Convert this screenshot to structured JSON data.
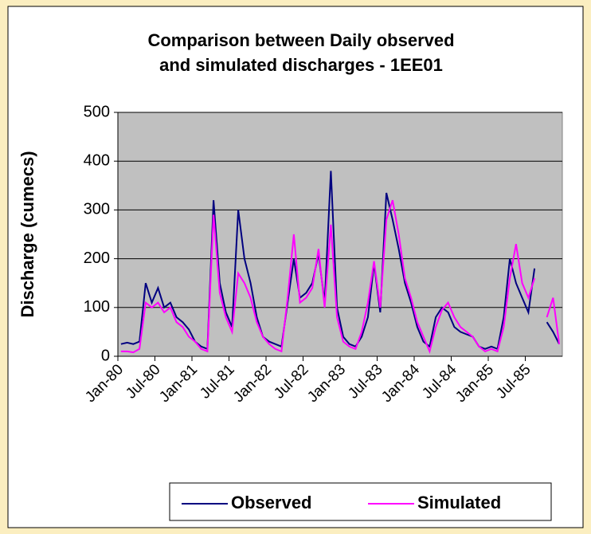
{
  "chart_data": {
    "type": "line",
    "title": [
      "Comparison between Daily observed",
      "and simulated discharges - 1EE01"
    ],
    "y_label": "Discharge (cumecs)",
    "categories": [
      "Jan-80",
      null,
      null,
      null,
      null,
      null,
      "Jul-80",
      null,
      null,
      null,
      null,
      null,
      "Jan-81",
      null,
      null,
      null,
      null,
      null,
      "Jul-81",
      null,
      null,
      null,
      null,
      null,
      "Jan-82",
      null,
      null,
      null,
      null,
      null,
      "Jul-82",
      null,
      null,
      null,
      null,
      null,
      "Jan-83",
      null,
      null,
      null,
      null,
      null,
      "Jul-83",
      null,
      null,
      null,
      null,
      null,
      "Jan-84",
      null,
      null,
      null,
      null,
      null,
      "Jul-84",
      null,
      null,
      null,
      null,
      null,
      "Jan-85",
      null,
      null,
      null,
      null,
      null,
      "Jul-85",
      null,
      null,
      null,
      null,
      null
    ],
    "series": [
      {
        "name": "Observed",
        "color": "#000080",
        "values": [
          25,
          28,
          25,
          30,
          150,
          110,
          140,
          100,
          110,
          80,
          70,
          55,
          30,
          20,
          15,
          320,
          150,
          90,
          60,
          300,
          200,
          150,
          80,
          40,
          30,
          25,
          20,
          110,
          200,
          120,
          130,
          150,
          210,
          110,
          380,
          100,
          40,
          25,
          20,
          40,
          80,
          190,
          90,
          335,
          280,
          220,
          150,
          110,
          60,
          30,
          20,
          80,
          100,
          90,
          60,
          50,
          45,
          40,
          20,
          15,
          20,
          15,
          80,
          200,
          150,
          120,
          90,
          180,
          null,
          70,
          50,
          25
        ]
      },
      {
        "name": "Simulated",
        "color": "#ff00ff",
        "values": [
          10,
          10,
          8,
          15,
          110,
          100,
          110,
          90,
          100,
          70,
          60,
          40,
          30,
          15,
          10,
          290,
          130,
          80,
          50,
          170,
          150,
          120,
          70,
          40,
          25,
          15,
          10,
          120,
          250,
          110,
          120,
          140,
          220,
          100,
          270,
          80,
          30,
          20,
          15,
          50,
          110,
          195,
          100,
          280,
          320,
          250,
          160,
          120,
          70,
          40,
          10,
          60,
          95,
          110,
          80,
          60,
          50,
          40,
          20,
          10,
          15,
          10,
          60,
          160,
          230,
          150,
          120,
          160,
          null,
          80,
          120,
          25
        ]
      }
    ],
    "ylim": [
      0,
      500
    ],
    "yticks": [
      0,
      100,
      200,
      300,
      400,
      500
    ],
    "grid": true,
    "plot_background": "#c0c0c0",
    "legend": "bottom"
  }
}
